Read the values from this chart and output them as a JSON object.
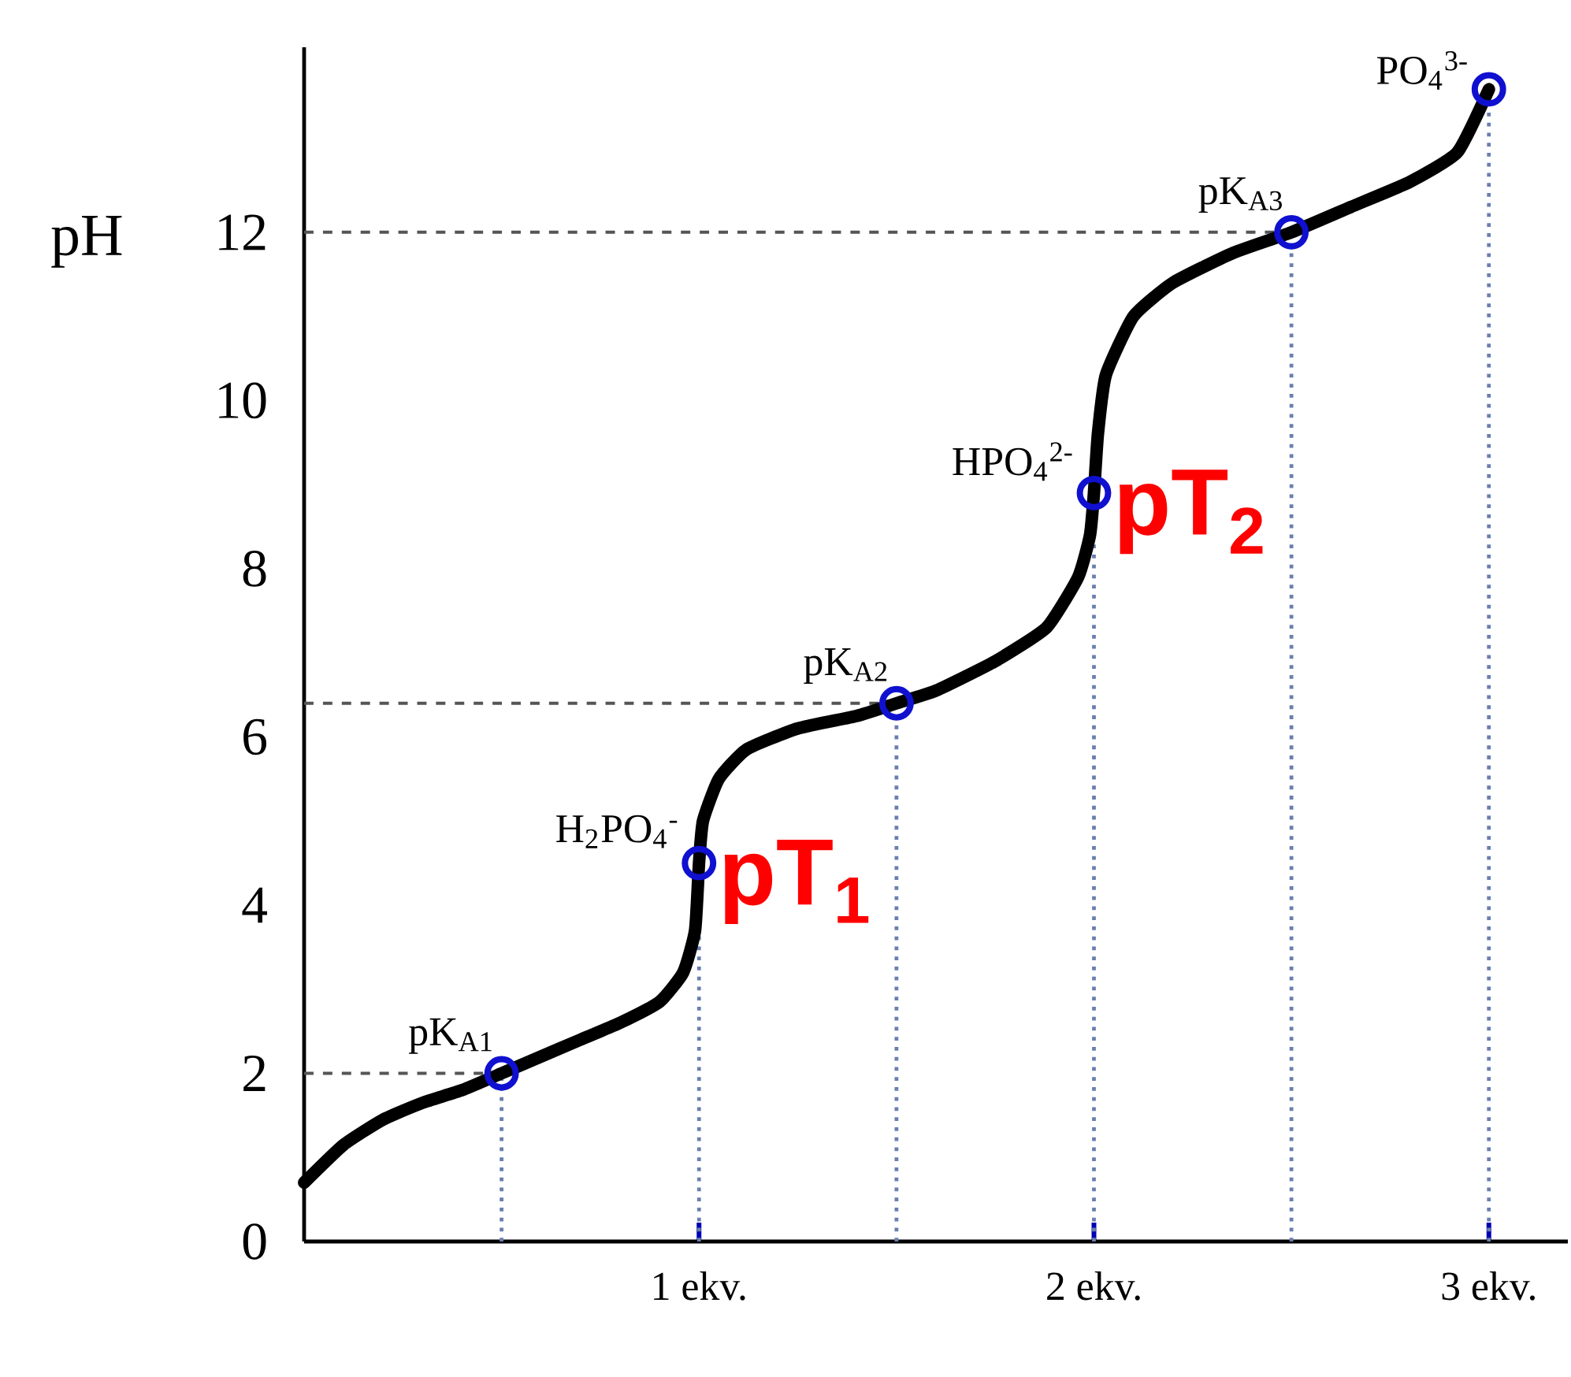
{
  "chart_data": {
    "type": "line",
    "ylabel": "pH",
    "xlim": [
      0,
      3.2
    ],
    "ylim": [
      0,
      14.2
    ],
    "xticks": [
      {
        "value": 1,
        "label": "1 ekv."
      },
      {
        "value": 2,
        "label": "2 ekv."
      },
      {
        "value": 3,
        "label": "3 ekv."
      }
    ],
    "yticks": [
      0,
      2,
      4,
      6,
      8,
      10,
      12
    ],
    "grid": false,
    "series": [
      {
        "color": "#000000",
        "marker": "none",
        "x": [
          0,
          0.1,
          0.2,
          0.3,
          0.4,
          0.5,
          0.6,
          0.7,
          0.8,
          0.9,
          0.96,
          0.99,
          1.0,
          1.01,
          1.05,
          1.12,
          1.25,
          1.4,
          1.5,
          1.6,
          1.75,
          1.88,
          1.96,
          1.99,
          2.0,
          2.01,
          2.03,
          2.1,
          2.2,
          2.35,
          2.5,
          2.65,
          2.8,
          2.92,
          3.0
        ],
        "values": [
          0.7,
          1.15,
          1.45,
          1.65,
          1.8,
          2.0,
          2.2,
          2.4,
          2.6,
          2.85,
          3.2,
          3.7,
          4.5,
          5.0,
          5.5,
          5.85,
          6.1,
          6.25,
          6.4,
          6.55,
          6.9,
          7.3,
          7.9,
          8.4,
          8.9,
          9.6,
          10.3,
          11.0,
          11.4,
          11.75,
          12.0,
          12.3,
          12.6,
          12.95,
          13.7
        ]
      },
      {
        "type": "scatter",
        "color": "#1010d0",
        "marker": "circle",
        "x": [
          0.5,
          1,
          1.5,
          2,
          2.5,
          3
        ],
        "values": [
          2,
          4.5,
          6.4,
          8.9,
          12,
          13.7
        ]
      }
    ],
    "ref_lines": [
      {
        "axis": "y",
        "value": 2,
        "color": "#555555",
        "line_style": "dashed"
      },
      {
        "axis": "y",
        "value": 6.4,
        "color": "#555555",
        "line_style": "dashed"
      },
      {
        "axis": "y",
        "value": 12,
        "color": "#555555",
        "line_style": "dashed"
      },
      {
        "axis": "x",
        "value": 0.5,
        "color": "#6a7fb0",
        "line_style": "dotted"
      },
      {
        "axis": "x",
        "value": 1,
        "color": "#6a7fb0",
        "line_style": "dotted"
      },
      {
        "axis": "x",
        "value": 1.5,
        "color": "#6a7fb0",
        "line_style": "dotted"
      },
      {
        "axis": "x",
        "value": 2,
        "color": "#6a7fb0",
        "line_style": "dotted"
      },
      {
        "axis": "x",
        "value": 2.5,
        "color": "#6a7fb0",
        "line_style": "dotted"
      },
      {
        "axis": "x",
        "value": 3,
        "color": "#6a7fb0",
        "line_style": "dotted"
      }
    ],
    "annotations": [
      {
        "text": "pK$_{A1}$",
        "x": 0.5,
        "y": 2
      },
      {
        "text": "H$_{2}$PO$_{4}$$^{-}$",
        "x": 1,
        "y": 4.5
      },
      {
        "text": "pK$_{A2}$",
        "x": 1.5,
        "y": 6.4
      },
      {
        "text": "HPO$_{4}$$^{2-}$",
        "x": 2,
        "y": 8.9
      },
      {
        "text": "pK$_{A3}$",
        "x": 2.5,
        "y": 12
      },
      {
        "text": "PO$_{4}$$^{3-}$",
        "x": 3,
        "y": 13.7
      },
      {
        "text": "pT$_{1}$",
        "x": 1,
        "y": 4.5
      },
      {
        "text": "pT$_{2}$",
        "x": 2,
        "y": 8.9
      }
    ]
  }
}
